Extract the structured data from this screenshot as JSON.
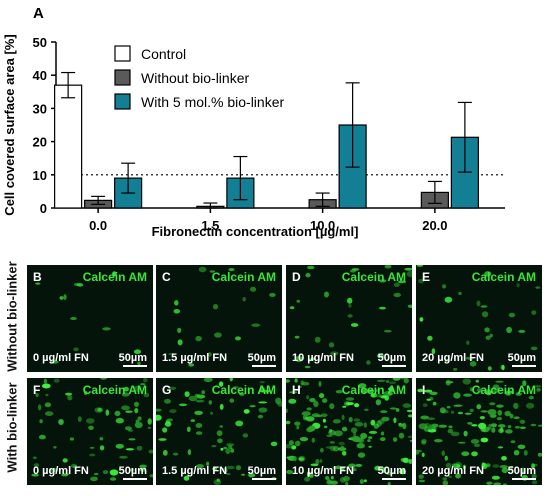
{
  "panel_letter": "A",
  "chart_data": {
    "type": "bar",
    "title": "",
    "xlabel": "Fibronectin concentration [µg/ml]",
    "ylabel": "Cell covered surface area [%]",
    "categories": [
      "0.0",
      "1.5",
      "10.0",
      "20.0"
    ],
    "ylim": [
      0,
      50
    ],
    "yticks": [
      0,
      10,
      20,
      30,
      40,
      50
    ],
    "reference_line": 10,
    "legend_position": "top-center",
    "series": [
      {
        "name": "Control",
        "color": "#ffffff",
        "values": [
          37,
          null,
          null,
          null
        ],
        "errors": [
          3.8,
          null,
          null,
          null
        ]
      },
      {
        "name": "Without bio-linker",
        "color": "#5a5a5a",
        "values": [
          2.3,
          0.5,
          2.5,
          4.7
        ],
        "errors": [
          1.2,
          1.0,
          2.0,
          3.3
        ]
      },
      {
        "name": "With 5 mol.% bio-linker",
        "color": "#127f94",
        "values": [
          9,
          9,
          25,
          21.3
        ],
        "errors": [
          4.5,
          6.5,
          12.7,
          10.5
        ]
      }
    ]
  },
  "micrographs": {
    "stain": "Calcein AM",
    "scale": "50µm",
    "row_labels": [
      "Without bio-linker",
      "With bio-linker"
    ],
    "panels": [
      {
        "letter": "B",
        "fn": "0 µg/ml FN",
        "density": 12
      },
      {
        "letter": "C",
        "fn": "1.5 µg/ml FN",
        "density": 18
      },
      {
        "letter": "D",
        "fn": "10  µg/ml FN",
        "density": 30
      },
      {
        "letter": "E",
        "fn": "20 µg/ml FN",
        "density": 30
      },
      {
        "letter": "F",
        "fn": "0 µg/ml FN",
        "density": 70
      },
      {
        "letter": "G",
        "fn": "1.5 µg/ml FN",
        "density": 70
      },
      {
        "letter": "H",
        "fn": "10  µg/ml FN",
        "density": 160
      },
      {
        "letter": "I",
        "fn": "20 µg/ml FN",
        "density": 130
      }
    ]
  }
}
